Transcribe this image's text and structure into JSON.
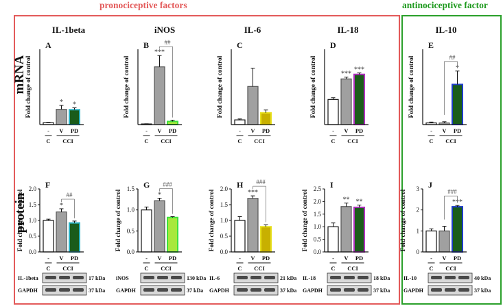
{
  "headers": {
    "pro": "pronociceptive factors",
    "anti": "antinociceptive factor"
  },
  "row_labels": {
    "mrna": "mRNA",
    "protein": "protein"
  },
  "colors": {
    "red_frame": "#e35a5a",
    "green_frame": "#2aa02a",
    "control": "#ffffff",
    "vehicle": "#a0a0a0",
    "pd_fill": "#1a5c1a",
    "pd_fill_light": "#a8e83c",
    "pd_fill_yellow": "#c8b000",
    "pd_border_teal": "#2ab0c0",
    "pd_border_purple": "#b030c0",
    "pd_border_blue": "#1e3cc8",
    "pd_border_green": "#3ce03c"
  },
  "chart_data": [
    {
      "id": "A",
      "type": "bar",
      "title": "IL-1beta",
      "row": "mRNA",
      "ylabel": "Fold change of control",
      "ylim": [
        0,
        40
      ],
      "yticks": [],
      "categories": [
        "-",
        "V",
        "PD"
      ],
      "group_labels": {
        "c": "C",
        "cci": "CCI"
      },
      "values": [
        1,
        8.1,
        7.9
      ],
      "errors": [
        0.2,
        2.1,
        1.0
      ],
      "stars": [
        "",
        "*",
        "*"
      ],
      "comparison": null
    },
    {
      "id": "B",
      "type": "bar",
      "title": "iNOS",
      "row": "mRNA",
      "ylabel": "Fold change of control",
      "ylim": [
        0,
        120
      ],
      "yticks": [],
      "categories": [
        "-",
        "V",
        "PD"
      ],
      "group_labels": {
        "c": "C",
        "cci": "CCI"
      },
      "values": [
        1,
        92,
        5
      ],
      "errors": [
        0.3,
        18,
        2
      ],
      "stars": [
        "",
        "***",
        ""
      ],
      "comparison": "##"
    },
    {
      "id": "C",
      "type": "bar",
      "title": "IL-6",
      "row": "mRNA",
      "ylabel": "Fold change of control",
      "ylim": [
        0,
        16
      ],
      "yticks": [],
      "categories": [
        "-",
        "V",
        "PD"
      ],
      "group_labels": {
        "c": "C",
        "cci": "CCI"
      },
      "values": [
        1,
        8.1,
        2.5
      ],
      "errors": [
        0.2,
        3.9,
        0.6
      ],
      "stars": [
        "",
        "",
        ""
      ],
      "comparison": null
    },
    {
      "id": "D",
      "type": "bar",
      "title": "IL-18",
      "row": "mRNA",
      "ylabel": "Fold change of control",
      "ylim": [
        0,
        3
      ],
      "yticks": [],
      "categories": [
        "-",
        "V",
        "PD"
      ],
      "group_labels": {
        "c": "C",
        "cci": "CCI"
      },
      "values": [
        1,
        1.82,
        2.0
      ],
      "errors": [
        0.07,
        0.07,
        0.06
      ],
      "stars": [
        "",
        "***",
        "***"
      ],
      "comparison": null
    },
    {
      "id": "E",
      "type": "bar",
      "title": "IL-10",
      "row": "mRNA",
      "ylabel": "Fold change of control",
      "ylim": [
        0,
        45
      ],
      "yticks": [],
      "categories": [
        "-",
        "V",
        "PD"
      ],
      "group_labels": {
        "c": "C",
        "cci": "CCI"
      },
      "values": [
        1,
        1,
        24
      ],
      "errors": [
        0.5,
        0.7,
        8
      ],
      "stars": [
        "",
        "",
        "*"
      ],
      "comparison": "##"
    },
    {
      "id": "F",
      "type": "bar",
      "title": "",
      "row": "protein",
      "ylabel": "Fold change of control",
      "ylim": [
        0,
        2.0
      ],
      "yticks": [
        "0.0",
        "0.5",
        "1.0",
        "1.5",
        "2.0"
      ],
      "categories": [
        "-",
        "V",
        "PD"
      ],
      "group_labels": {
        "c": "C",
        "cci": "CCI"
      },
      "values": [
        1.0,
        1.27,
        0.92
      ],
      "errors": [
        0.04,
        0.1,
        0.06
      ],
      "stars": [
        "",
        "*",
        ""
      ],
      "comparison": "##",
      "blot": {
        "target": "IL-1beta",
        "target_kda": "17 kDa",
        "loading": "GAPDH",
        "loading_kda": "37 kDa"
      }
    },
    {
      "id": "G",
      "type": "bar",
      "title": "",
      "row": "protein",
      "ylabel": "Fold change of control",
      "ylim": [
        0,
        1.5
      ],
      "yticks": [
        "0.0",
        "0.5",
        "1.0",
        "1.5"
      ],
      "categories": [
        "-",
        "V",
        "PD"
      ],
      "group_labels": {
        "c": "C",
        "cci": "CCI"
      },
      "values": [
        1.0,
        1.22,
        0.82
      ],
      "errors": [
        0.07,
        0.06,
        0.02
      ],
      "stars": [
        "",
        "*",
        ""
      ],
      "comparison": "###",
      "blot": {
        "target": "iNOS",
        "target_kda": "130 kDa",
        "loading": "GAPDH",
        "loading_kda": "37 kDa"
      }
    },
    {
      "id": "H",
      "type": "bar",
      "title": "",
      "row": "protein",
      "ylabel": "Fold change of control",
      "ylim": [
        0,
        2.0
      ],
      "yticks": [
        "0.0",
        "0.5",
        "1.0",
        "1.5",
        "2.0"
      ],
      "categories": [
        "-",
        "V",
        "PD"
      ],
      "group_labels": {
        "c": "C",
        "cci": "CCI"
      },
      "values": [
        1.0,
        1.7,
        0.8
      ],
      "errors": [
        0.12,
        0.08,
        0.06
      ],
      "stars": [
        "",
        "***",
        ""
      ],
      "comparison": "###",
      "blot": {
        "target": "IL-6",
        "target_kda": "21 kDa",
        "loading": "GAPDH",
        "loading_kda": "37 kDa"
      }
    },
    {
      "id": "I",
      "type": "bar",
      "title": "",
      "row": "protein",
      "ylabel": "Fold change of control",
      "ylim": [
        0,
        2.5
      ],
      "yticks": [
        "0.0",
        "0.5",
        "1.0",
        "1.5",
        "2.0",
        "2.5"
      ],
      "categories": [
        "-",
        "V",
        "PD"
      ],
      "group_labels": {
        "c": "C",
        "cci": "CCI"
      },
      "values": [
        1.0,
        1.8,
        1.77
      ],
      "errors": [
        0.15,
        0.14,
        0.09
      ],
      "stars": [
        "",
        "**",
        "**"
      ],
      "comparison": null,
      "blot": {
        "target": "IL-18",
        "target_kda": "18 kDa",
        "loading": "GAPDH",
        "loading_kda": "37 kDa"
      }
    },
    {
      "id": "J",
      "type": "bar",
      "title": "",
      "row": "protein",
      "ylabel": "Fold change of control",
      "ylim": [
        0,
        3
      ],
      "yticks": [
        "0",
        "1",
        "2",
        "3"
      ],
      "categories": [
        "-",
        "V",
        "PD"
      ],
      "group_labels": {
        "c": "C",
        "cci": "CCI"
      },
      "values": [
        1.0,
        1.0,
        2.15
      ],
      "errors": [
        0.1,
        0.22,
        0.06
      ],
      "stars": [
        "",
        "",
        "***"
      ],
      "comparison": "###",
      "blot": {
        "target": "IL-10",
        "target_kda": "40 kDa",
        "loading": "GAPDH",
        "loading_kda": "37 kDa"
      }
    }
  ]
}
